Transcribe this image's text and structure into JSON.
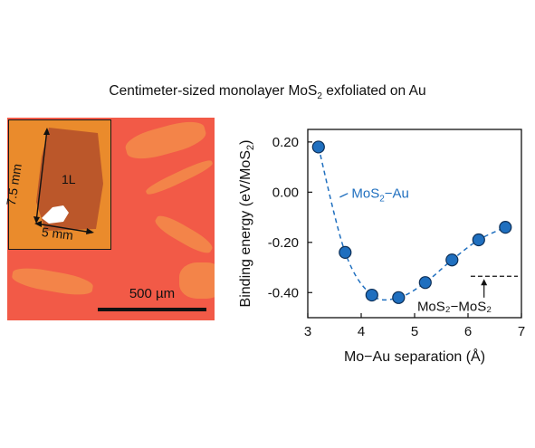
{
  "figure": {
    "title_prefix": "Centimeter-sized monolayer MoS",
    "title_sub": "2",
    "title_suffix": " exfoliated on Au"
  },
  "micrograph": {
    "scale_bar_label": "500 µm",
    "inset": {
      "layer_label": "1L",
      "height_label": "7.5 mm",
      "width_label": "5 mm"
    },
    "colors": {
      "substrate": "#f25a47",
      "inset_background": "#ea8b2c",
      "flake": "#b8542a",
      "bulk_crystal": "#ffffff"
    }
  },
  "chart_data": {
    "type": "scatter",
    "x": [
      3.2,
      3.7,
      4.2,
      4.7,
      5.2,
      5.7,
      6.2,
      6.7
    ],
    "y": [
      0.18,
      -0.24,
      -0.41,
      -0.42,
      -0.36,
      -0.27,
      -0.19,
      -0.14
    ],
    "xlim": [
      3,
      7
    ],
    "ylim": [
      -0.5,
      0.25
    ],
    "xticks": [
      "3",
      "4",
      "5",
      "6",
      "7"
    ],
    "yticks": [
      "0.20",
      "0.00",
      "-0.20",
      "-0.40"
    ],
    "xlabel": "Mo−Au separation (Å)",
    "ylabel_prefix": "Binding energy (eV/MoS",
    "ylabel_sub": "2",
    "ylabel_suffix": ")",
    "series_label_prefix": "MoS",
    "series_label_sub": "2",
    "series_label_suffix": "−Au",
    "reference_label": "MoS₂−MoS₂",
    "reference_y": -0.335,
    "marker_color": "#1f6fbf",
    "line_color": "#1f6fbf"
  }
}
